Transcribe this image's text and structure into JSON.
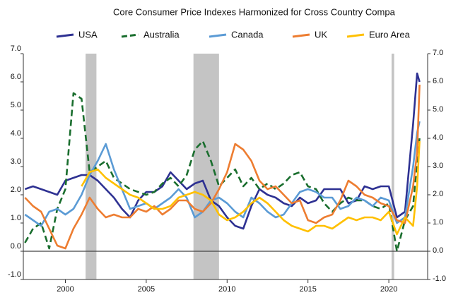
{
  "chart_data": {
    "type": "line",
    "title": "Core Consumer Price Indexes Harmonized for Cross Country Compa",
    "x": [
      1997.5,
      1998,
      1998.5,
      1999,
      1999.5,
      2000,
      2000.5,
      2001,
      2001.5,
      2002,
      2002.5,
      2003,
      2003.5,
      2004,
      2004.5,
      2005,
      2005.5,
      2006,
      2006.5,
      2007,
      2007.5,
      2008,
      2008.5,
      2009,
      2009.5,
      2010,
      2010.5,
      2011,
      2011.5,
      2012,
      2012.5,
      2013,
      2013.5,
      2014,
      2014.5,
      2015,
      2015.5,
      2016,
      2016.5,
      2017,
      2017.5,
      2018,
      2018.5,
      2019,
      2019.5,
      2020,
      2020.5,
      2021,
      2021.5,
      2021.75,
      2021.9
    ],
    "series": [
      {
        "name": "USA",
        "color": "#2e3192",
        "dash": false,
        "values": [
          2.2,
          2.3,
          2.2,
          2.1,
          2.0,
          2.5,
          2.6,
          2.7,
          2.7,
          2.5,
          2.2,
          1.9,
          1.5,
          1.2,
          1.8,
          2.1,
          2.1,
          2.3,
          2.8,
          2.5,
          2.2,
          2.4,
          2.5,
          1.8,
          1.6,
          1.2,
          0.9,
          0.8,
          1.6,
          2.2,
          2.0,
          1.9,
          1.7,
          1.6,
          1.9,
          1.7,
          1.8,
          2.2,
          2.2,
          2.2,
          1.7,
          1.8,
          2.3,
          2.2,
          2.3,
          2.3,
          1.2,
          1.4,
          4.5,
          6.3,
          6.0
        ]
      },
      {
        "name": "Australia",
        "color": "#1a6e2e",
        "dash": true,
        "values": [
          0.3,
          0.8,
          1.0,
          0.1,
          1.5,
          2.2,
          5.6,
          5.4,
          2.8,
          3.0,
          3.2,
          2.6,
          2.4,
          2.2,
          2.1,
          2.0,
          2.1,
          2.4,
          2.6,
          2.3,
          2.7,
          3.6,
          3.9,
          3.2,
          2.3,
          2.6,
          2.9,
          2.3,
          2.6,
          2.2,
          2.4,
          2.2,
          2.4,
          2.7,
          2.8,
          2.3,
          2.2,
          1.7,
          1.4,
          1.7,
          1.9,
          1.8,
          1.8,
          1.6,
          1.5,
          1.7,
          0.0,
          1.1,
          1.6,
          3.2,
          4.0
        ]
      },
      {
        "name": "Canada",
        "color": "#5b9bd5",
        "dash": false,
        "values": [
          1.3,
          1.1,
          0.9,
          1.4,
          1.5,
          1.3,
          1.5,
          2.0,
          2.7,
          3.2,
          3.8,
          2.9,
          2.2,
          1.5,
          1.6,
          1.7,
          1.5,
          1.7,
          1.9,
          2.2,
          1.9,
          1.2,
          1.4,
          1.8,
          1.9,
          1.7,
          1.4,
          1.2,
          1.9,
          1.7,
          1.4,
          1.2,
          1.3,
          1.7,
          2.1,
          2.2,
          2.1,
          1.9,
          1.9,
          1.5,
          1.6,
          1.9,
          1.8,
          1.6,
          1.9,
          1.8,
          1.0,
          1.2,
          3.0,
          4.2,
          4.6
        ]
      },
      {
        "name": "UK",
        "color": "#ed7d31",
        "dash": false,
        "values": [
          1.9,
          1.6,
          1.4,
          0.8,
          0.2,
          0.1,
          0.8,
          1.3,
          1.9,
          1.5,
          1.2,
          1.3,
          1.2,
          1.2,
          1.5,
          1.4,
          1.6,
          1.3,
          1.5,
          1.8,
          1.8,
          1.5,
          1.4,
          1.7,
          2.2,
          2.8,
          3.8,
          3.6,
          3.2,
          2.5,
          2.2,
          2.3,
          2.0,
          1.7,
          1.8,
          1.1,
          1.0,
          1.2,
          1.3,
          1.8,
          2.5,
          2.3,
          2.0,
          1.9,
          1.7,
          1.6,
          1.1,
          1.0,
          2.3,
          3.5,
          5.9
        ]
      },
      {
        "name": "Euro Area",
        "color": "#ffc000",
        "dash": false,
        "values": [
          null,
          null,
          null,
          null,
          null,
          null,
          null,
          2.3,
          2.8,
          2.9,
          2.6,
          2.4,
          2.2,
          2.0,
          1.9,
          1.7,
          1.5,
          1.5,
          1.6,
          1.9,
          2.0,
          2.1,
          2.0,
          1.8,
          1.3,
          1.1,
          1.2,
          1.4,
          1.7,
          1.9,
          1.7,
          1.4,
          1.1,
          0.9,
          0.8,
          0.7,
          0.9,
          0.9,
          0.8,
          1.0,
          1.2,
          1.1,
          1.2,
          1.2,
          1.1,
          1.4,
          0.6,
          1.2,
          0.9,
          2.3,
          3.9
        ]
      }
    ],
    "shaded_periods": [
      [
        2001.25,
        2001.92
      ],
      [
        2007.92,
        2009.5
      ],
      [
        2020.17,
        2020.33
      ]
    ],
    "xlim": [
      1997.4,
      2022.4
    ],
    "xticks": [
      2000,
      2005,
      2010,
      2015,
      2020
    ],
    "ylim": [
      -1,
      7
    ],
    "yticks": [
      {
        "value": -1,
        "label": "-1.0"
      },
      {
        "value": 0,
        "label": "0.0"
      },
      {
        "value": 1,
        "label": "1.0"
      },
      {
        "value": 2,
        "label": "2.0"
      },
      {
        "value": 3,
        "label": "3.0"
      },
      {
        "value": 4,
        "label": "4.0"
      },
      {
        "value": 5,
        "label": "5.0"
      },
      {
        "value": 6,
        "label": "6.0"
      },
      {
        "value": 7,
        "label": "7.0"
      }
    ],
    "y2lim": [
      -1,
      7
    ],
    "y2ticks": [
      {
        "value": -1,
        "label": "-1.0"
      },
      {
        "value": 0,
        "label": "0.0"
      },
      {
        "value": 1,
        "label": "1.0"
      },
      {
        "value": 2,
        "label": "2.0"
      },
      {
        "value": 3,
        "label": "3.0"
      },
      {
        "value": 4,
        "label": "4.0"
      },
      {
        "value": 5,
        "label": "5.0"
      },
      {
        "value": 6,
        "label": "6.0"
      },
      {
        "value": 7,
        "label": "7.0"
      }
    ],
    "legend": "top"
  }
}
